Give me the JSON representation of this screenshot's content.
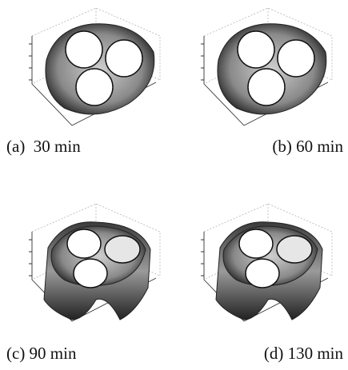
{
  "panels": [
    {
      "caption": "(a)  30 min"
    },
    {
      "caption": "(b) 60 min"
    },
    {
      "caption": "(c) 90 min"
    },
    {
      "caption": "(d) 130 min"
    }
  ]
}
